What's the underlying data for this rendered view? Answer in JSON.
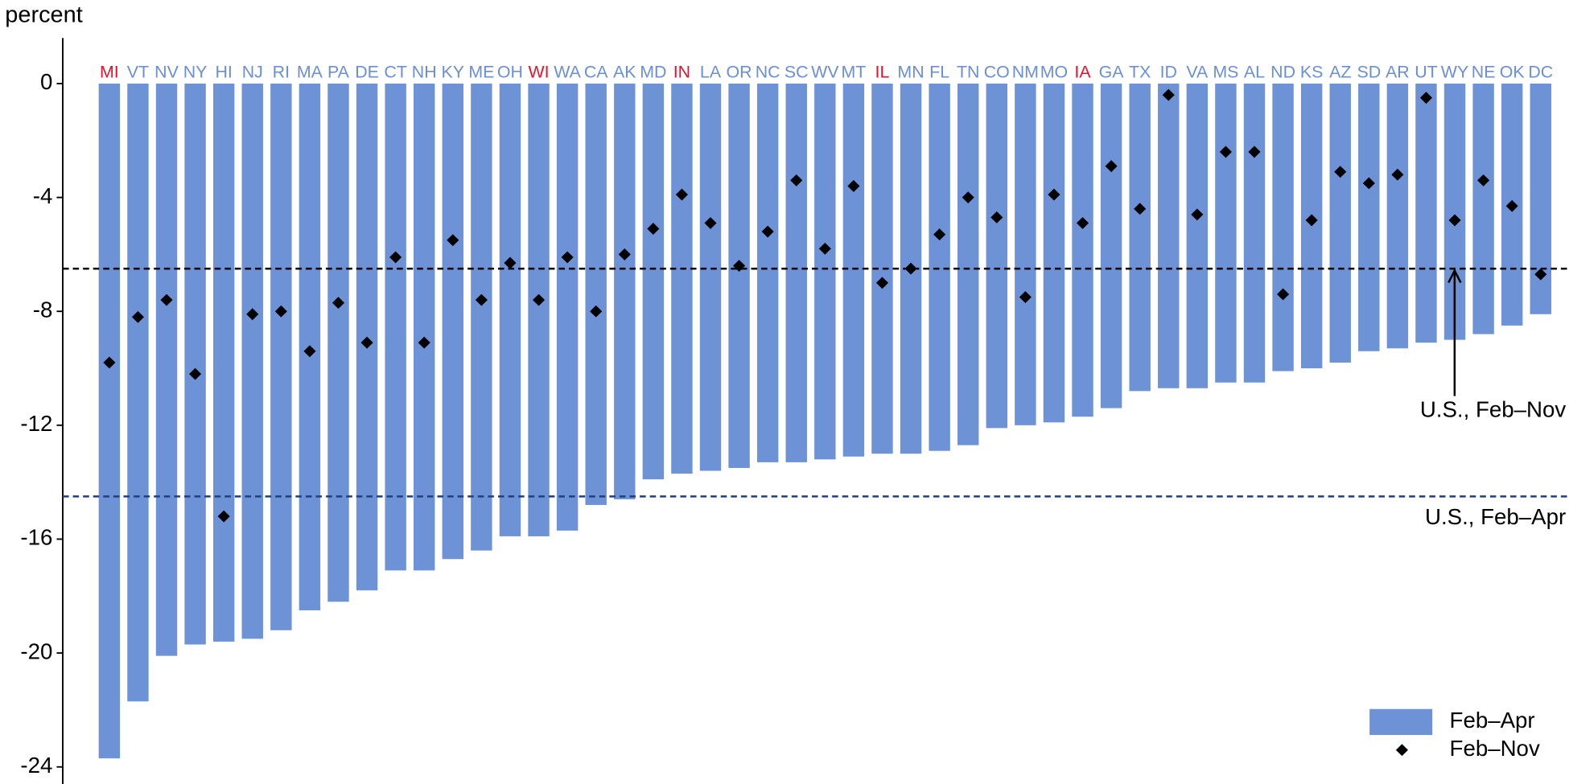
{
  "chart_data": {
    "type": "bar",
    "y_label": "percent",
    "categories": [
      "MI",
      "VT",
      "NV",
      "NY",
      "HI",
      "NJ",
      "RI",
      "MA",
      "PA",
      "DE",
      "CT",
      "NH",
      "KY",
      "ME",
      "OH",
      "WI",
      "WA",
      "CA",
      "AK",
      "MD",
      "IN",
      "LA",
      "OR",
      "NC",
      "SC",
      "WV",
      "MT",
      "IL",
      "MN",
      "FL",
      "TN",
      "CO",
      "NM",
      "MO",
      "IA",
      "GA",
      "TX",
      "ID",
      "VA",
      "MS",
      "AL",
      "ND",
      "KS",
      "AZ",
      "SD",
      "AR",
      "UT",
      "WY",
      "NE",
      "OK",
      "DC"
    ],
    "category_label_colors": [
      "#e8102a",
      "#6b8fd4",
      "#6b8fd4",
      "#6b8fd4",
      "#6b8fd4",
      "#6b8fd4",
      "#6b8fd4",
      "#6b8fd4",
      "#6b8fd4",
      "#6b8fd4",
      "#6b8fd4",
      "#6b8fd4",
      "#6b8fd4",
      "#6b8fd4",
      "#6b8fd4",
      "#e8102a",
      "#6b8fd4",
      "#6b8fd4",
      "#6b8fd4",
      "#6b8fd4",
      "#e8102a",
      "#6b8fd4",
      "#6b8fd4",
      "#6b8fd4",
      "#6b8fd4",
      "#6b8fd4",
      "#6b8fd4",
      "#e8102a",
      "#6b8fd4",
      "#6b8fd4",
      "#6b8fd4",
      "#6b8fd4",
      "#6b8fd4",
      "#6b8fd4",
      "#e8102a",
      "#6b8fd4",
      "#6b8fd4",
      "#6b8fd4",
      "#6b8fd4",
      "#6b8fd4",
      "#6b8fd4",
      "#6b8fd4",
      "#6b8fd4",
      "#6b8fd4",
      "#6b8fd4",
      "#6b8fd4",
      "#6b8fd4",
      "#6b8fd4",
      "#6b8fd4",
      "#6b8fd4",
      "#6b8fd4"
    ],
    "series": [
      {
        "name": "Feb–Apr",
        "type": "bar",
        "color": "#6d93d6",
        "values": [
          -23.7,
          -21.7,
          -20.1,
          -19.7,
          -19.6,
          -19.5,
          -19.2,
          -18.5,
          -18.2,
          -17.8,
          -17.1,
          -17.1,
          -16.7,
          -16.4,
          -15.9,
          -15.9,
          -15.7,
          -14.8,
          -14.6,
          -13.9,
          -13.7,
          -13.6,
          -13.5,
          -13.3,
          -13.3,
          -13.2,
          -13.1,
          -13.0,
          -13.0,
          -12.9,
          -12.7,
          -12.1,
          -12.0,
          -11.9,
          -11.7,
          -11.4,
          -10.8,
          -10.7,
          -10.7,
          -10.5,
          -10.5,
          -10.1,
          -10.0,
          -9.8,
          -9.4,
          -9.3,
          -9.1,
          -9.0,
          -8.8,
          -8.5,
          -8.1
        ]
      },
      {
        "name": "Feb–Nov",
        "type": "scatter",
        "color": "#000000",
        "values": [
          -9.8,
          -8.2,
          -7.6,
          -10.2,
          -15.2,
          -8.1,
          -8.0,
          -9.4,
          -7.7,
          -9.1,
          -6.1,
          -9.1,
          -5.5,
          -7.6,
          -6.3,
          -7.6,
          -6.1,
          -8.0,
          -6.0,
          -5.1,
          -3.9,
          -4.9,
          -6.4,
          -5.2,
          -3.4,
          -5.8,
          -3.6,
          -7.0,
          -6.5,
          -5.3,
          -4.0,
          -4.7,
          -7.5,
          -3.9,
          -4.9,
          -2.9,
          -4.4,
          -0.4,
          -4.6,
          -2.4,
          -2.4,
          -7.4,
          -4.8,
          -3.1,
          -3.5,
          -3.2,
          -0.5,
          -4.8,
          -3.4,
          -4.3,
          -6.7
        ]
      }
    ],
    "reference_lines": [
      {
        "label": "U.S., Feb–Nov",
        "value": -6.5,
        "color": "#000000",
        "arrow": true
      },
      {
        "label": "U.S., Feb–Apr",
        "value": -14.5,
        "color": "#1f3f7f",
        "arrow": false
      }
    ],
    "ylim": [
      -24.6,
      1.6
    ],
    "yticks": [
      0,
      -4,
      -8,
      -12,
      -16,
      -20,
      -24
    ],
    "legend": "bottom-right"
  }
}
